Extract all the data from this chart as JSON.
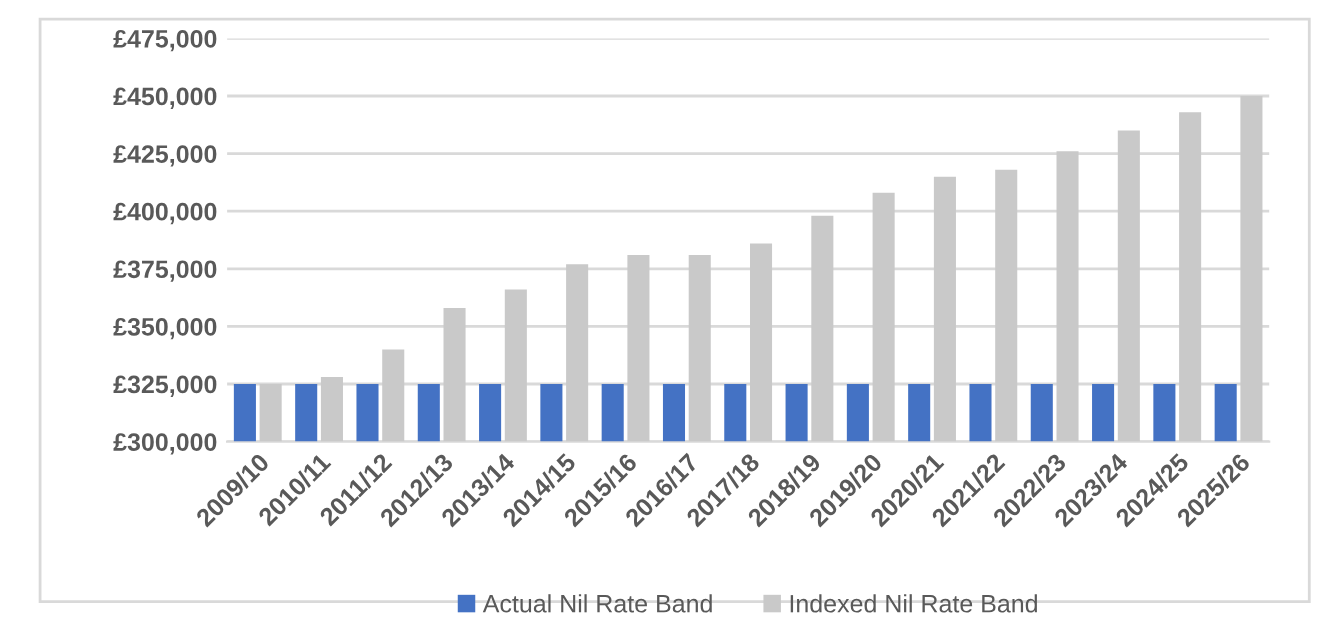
{
  "chart_data": {
    "type": "bar",
    "categories": [
      "2009/10",
      "2010/11",
      "2011/12",
      "2012/13",
      "2013/14",
      "2014/15",
      "2015/16",
      "2016/17",
      "2017/18",
      "2018/19",
      "2019/20",
      "2020/21",
      "2021/22",
      "2022/23",
      "2023/24",
      "2024/25",
      "2025/26"
    ],
    "series": [
      {
        "name": "Actual Nil Rate Band",
        "color": "#4472c4",
        "values": [
          325000,
          325000,
          325000,
          325000,
          325000,
          325000,
          325000,
          325000,
          325000,
          325000,
          325000,
          325000,
          325000,
          325000,
          325000,
          325000,
          325000
        ]
      },
      {
        "name": "Indexed Nil Rate Band",
        "color": "#c9c9c9",
        "values": [
          325000,
          328000,
          340000,
          358000,
          366000,
          377000,
          381000,
          381000,
          386000,
          398000,
          408000,
          415000,
          418000,
          426000,
          435000,
          443000,
          450000
        ]
      }
    ],
    "ylim": [
      300000,
      475000
    ],
    "yticks": [
      {
        "value": 300000,
        "label": "£300,000"
      },
      {
        "value": 325000,
        "label": "£325,000"
      },
      {
        "value": 350000,
        "label": "£350,000"
      },
      {
        "value": 375000,
        "label": "£375,000"
      },
      {
        "value": 400000,
        "label": "£400,000"
      },
      {
        "value": 425000,
        "label": "£425,000"
      },
      {
        "value": 450000,
        "label": "£450,000"
      },
      {
        "value": 475000,
        "label": "£475,000"
      }
    ],
    "grid": "y",
    "legend": "bottom"
  }
}
